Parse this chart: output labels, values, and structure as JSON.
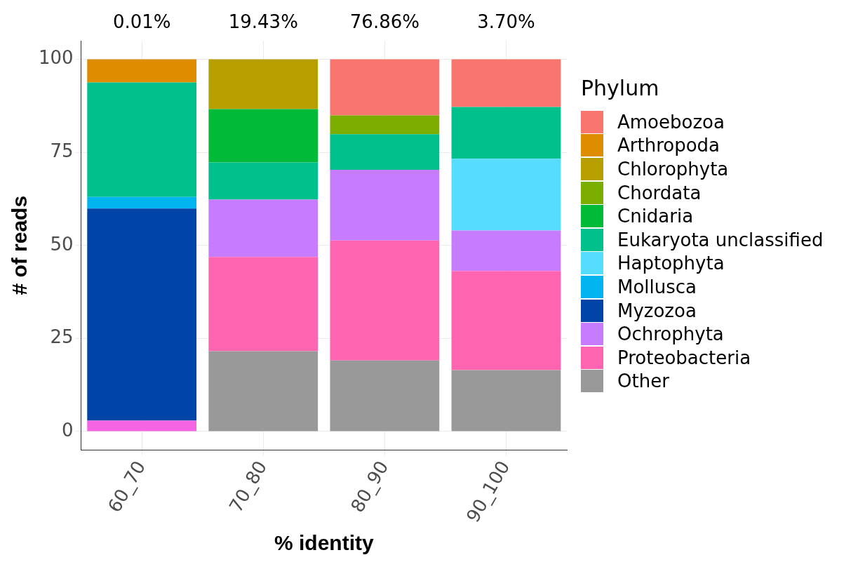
{
  "chart_data": {
    "type": "bar",
    "stacked": true,
    "xlabel": "% identity",
    "ylabel": "# of reads",
    "legend_title": "Phylum",
    "legend": "right",
    "grid": true,
    "categories": [
      "60_70",
      "70_80",
      "80_90",
      "90_100"
    ],
    "ylim": [
      -5,
      105
    ],
    "yticks": [
      0,
      25,
      50,
      75,
      100
    ],
    "annotations": [
      "0.01%",
      "19.43%",
      "76.86%",
      "3.70%"
    ],
    "series": [
      {
        "color": "#f564e3",
        "values": [
          2.9,
          null,
          null,
          null
        ]
      },
      {
        "name": "Other",
        "color": "#999999",
        "values": [
          null,
          21.6,
          19.1,
          16.5
        ]
      },
      {
        "name": "Proteobacteria",
        "color": "#ff64b0",
        "values": [
          null,
          25.3,
          32.2,
          26.6
        ]
      },
      {
        "name": "Ochrophyta",
        "color": "#c77cff",
        "values": [
          null,
          15.4,
          19,
          10.9
        ]
      },
      {
        "name": "Myzozoa",
        "color": "#0044a8",
        "values": [
          57,
          null,
          null,
          null
        ]
      },
      {
        "name": "Mollusca",
        "color": "#00b4f0",
        "values": [
          3.1,
          null,
          null,
          null
        ]
      },
      {
        "name": "Haptophyta",
        "color": "#55dcff",
        "values": [
          null,
          null,
          null,
          19.3
        ]
      },
      {
        "name": "Eukaryota unclassified",
        "color": "#00c08b",
        "values": [
          30.8,
          10,
          9.6,
          13.9
        ]
      },
      {
        "name": "Cnidaria",
        "color": "#00ba38",
        "values": [
          null,
          14.3,
          null,
          null
        ]
      },
      {
        "name": "Chordata",
        "color": "#7cae00",
        "values": [
          null,
          null,
          5,
          null
        ]
      },
      {
        "name": "Chlorophyta",
        "color": "#b79f00",
        "values": [
          null,
          13.4,
          null,
          null
        ]
      },
      {
        "name": "Arthropoda",
        "color": "#de8c00",
        "values": [
          6.2,
          null,
          null,
          null
        ]
      },
      {
        "name": "Amoebozoa",
        "color": "#f8766d",
        "values": [
          null,
          null,
          15.1,
          12.8
        ]
      }
    ]
  }
}
